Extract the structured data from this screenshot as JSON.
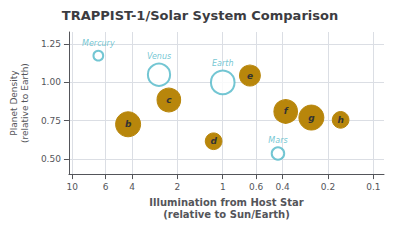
{
  "chart_data": {
    "type": "scatter",
    "title": "TRAPPIST-1/Solar System Comparison",
    "xlabel": "Illumination from Host Star\n(relative to Sun/Earth)",
    "ylabel": "Planet Density\n(relative to Earth)",
    "log": "x",
    "xlim": [
      10.5,
      0.085
    ],
    "ylim": [
      0.4,
      1.33
    ],
    "xticks": [
      10,
      6,
      4,
      2,
      1,
      0.6,
      0.4,
      0.2,
      0.1
    ],
    "yticks": [
      {
        "value": 0.5,
        "label": "0.50"
      },
      {
        "value": 0.75,
        "label": "0.75"
      },
      {
        "value": 1.0,
        "label": "1.00"
      },
      {
        "value": 1.25,
        "label": "1.25"
      }
    ],
    "grid": true,
    "series": [
      {
        "x": [
          6.7,
          2.65,
          1.0,
          0.43
        ],
        "values": [
          1.175,
          1.05,
          1.0,
          0.535
        ],
        "sizes": [
          7,
          16,
          17,
          9
        ],
        "labels": [
          "Mercury",
          "Venus",
          "Earth",
          "Mars"
        ],
        "color": "#50b8c8",
        "marker": "open_circle"
      },
      {
        "x": [
          4.25,
          2.28,
          1.15,
          0.66,
          0.382,
          0.258,
          0.165
        ],
        "values": [
          0.726,
          0.885,
          0.615,
          1.045,
          0.81,
          0.77,
          0.755
        ],
        "sizes": [
          18,
          17,
          12,
          15,
          17,
          18,
          12
        ],
        "labels": [
          "b",
          "c",
          "d",
          "e",
          "f",
          "g",
          "h"
        ],
        "color": "#b8860b",
        "marker": "circle"
      }
    ]
  }
}
